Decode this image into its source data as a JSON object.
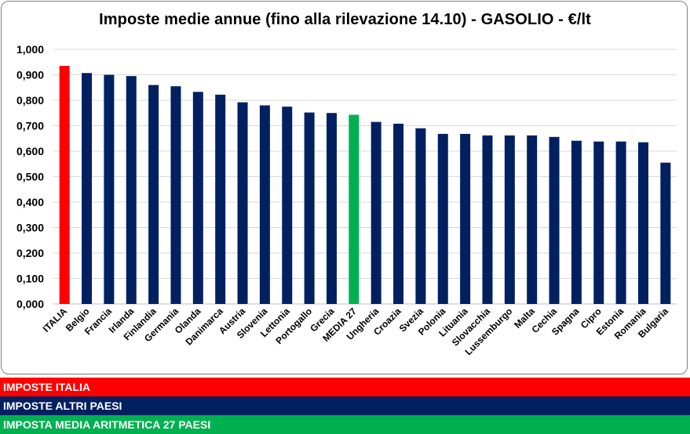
{
  "chart_data": {
    "type": "bar",
    "title": "Imposte medie annue (fino alla rilevazione 14.10) - GASOLIO - €/lt",
    "xlabel": "",
    "ylabel": "",
    "ylim": [
      0,
      1.0
    ],
    "yticks": [
      "0,000",
      "0,100",
      "0,200",
      "0,300",
      "0,400",
      "0,500",
      "0,600",
      "0,700",
      "0,800",
      "0,900",
      "1,000"
    ],
    "grid": true,
    "categories": [
      "ITALIA",
      "Belgio",
      "Francia",
      "Irlanda",
      "Finlandia",
      "Germania",
      "Olanda",
      "Danimarca",
      "Austria",
      "Slovenia",
      "Lettonia",
      "Portogallo",
      "Grecia",
      "MEDIA 27",
      "Ungheria",
      "Croazia",
      "Svezia",
      "Polonia",
      "Lituania",
      "Slovacchia",
      "Lussemburgo",
      "Malta",
      "Cechia",
      "Spagna",
      "Cipro",
      "Estonia",
      "Romania",
      "Bulgaria"
    ],
    "values": [
      0.935,
      0.907,
      0.9,
      0.895,
      0.86,
      0.855,
      0.833,
      0.822,
      0.792,
      0.78,
      0.775,
      0.752,
      0.75,
      0.743,
      0.715,
      0.708,
      0.69,
      0.668,
      0.668,
      0.662,
      0.662,
      0.662,
      0.656,
      0.641,
      0.638,
      0.638,
      0.635,
      0.555
    ],
    "groups": [
      "italia",
      "altri",
      "altri",
      "altri",
      "altri",
      "altri",
      "altri",
      "altri",
      "altri",
      "altri",
      "altri",
      "altri",
      "altri",
      "media",
      "altri",
      "altri",
      "altri",
      "altri",
      "altri",
      "altri",
      "altri",
      "altri",
      "altri",
      "altri",
      "altri",
      "altri",
      "altri",
      "altri"
    ],
    "colors": {
      "italia": "#ff0000",
      "altri": "#002060",
      "media": "#00b050"
    }
  },
  "legend": [
    {
      "label": "IMPOSTE ITALIA",
      "color": "#ff0000"
    },
    {
      "label": "IMPOSTE ALTRI PAESI",
      "color": "#002060"
    },
    {
      "label": "IMPOSTA MEDIA ARITMETICA 27 PAESI",
      "color": "#00b050"
    }
  ]
}
